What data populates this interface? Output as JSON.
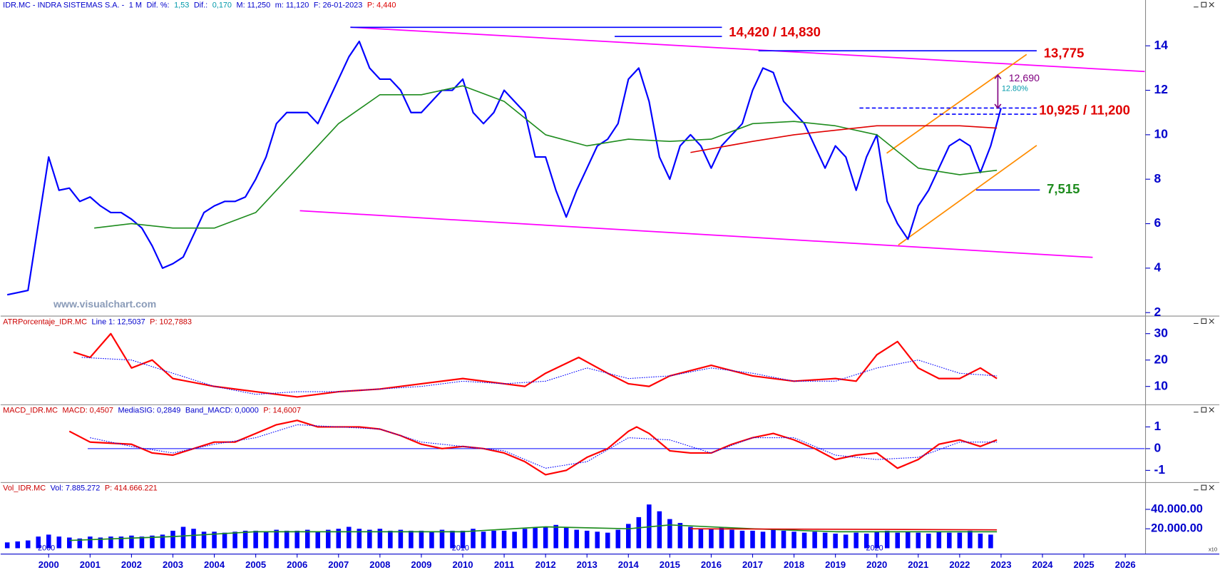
{
  "chart_data": [
    {
      "type": "line",
      "header": [
        {
          "text": "IDR.MC - INDRA SISTEMAS S.A. -",
          "color": "#0000cc"
        },
        {
          "text": "1 M",
          "color": "#0000cc"
        },
        {
          "text": "Dif. %:",
          "color": "#0000cc"
        },
        {
          "text": "1,53",
          "color": "#0099aa"
        },
        {
          "text": "Dif.:",
          "color": "#0000cc"
        },
        {
          "text": "0,170",
          "color": "#0099aa"
        },
        {
          "text": "M: 11,250",
          "color": "#0000cc"
        },
        {
          "text": "m: 11,120",
          "color": "#0000cc"
        },
        {
          "text": "F: 26-01-2023",
          "color": "#0000cc"
        },
        {
          "text": "P: 4,440",
          "color": "#dd0000"
        }
      ],
      "watermark": "www.visualchart.com",
      "xlim": [
        1998.84,
        2026.47
      ],
      "ylim": [
        1.86,
        16.06
      ],
      "yticks": [
        2,
        4,
        6,
        8,
        10,
        12,
        14
      ],
      "series": [
        {
          "color": "#0000ff",
          "width": 2,
          "x": [
            1999,
            1999.25,
            1999.5,
            1999.75,
            2000,
            2000.25,
            2000.5,
            2000.75,
            2001,
            2001.25,
            2001.5,
            2001.75,
            2002,
            2002.25,
            2002.5,
            2002.75,
            2003,
            2003.25,
            2003.5,
            2003.75,
            2004,
            2004.25,
            2004.5,
            2004.75,
            2005,
            2005.25,
            2005.5,
            2005.75,
            2006,
            2006.25,
            2006.5,
            2006.75,
            2007,
            2007.25,
            2007.5,
            2007.75,
            2008,
            2008.25,
            2008.5,
            2008.75,
            2009,
            2009.25,
            2009.5,
            2009.75,
            2010,
            2010.25,
            2010.5,
            2010.75,
            2011,
            2011.25,
            2011.5,
            2011.75,
            2012,
            2012.25,
            2012.5,
            2012.75,
            2013,
            2013.25,
            2013.5,
            2013.75,
            2014,
            2014.25,
            2014.5,
            2014.75,
            2015,
            2015.25,
            2015.5,
            2015.75,
            2016,
            2016.25,
            2016.5,
            2016.75,
            2017,
            2017.25,
            2017.5,
            2017.75,
            2018,
            2018.25,
            2018.5,
            2018.75,
            2019,
            2019.25,
            2019.5,
            2019.75,
            2020,
            2020.25,
            2020.5,
            2020.75,
            2021,
            2021.25,
            2021.5,
            2021.75,
            2022,
            2022.25,
            2022.5,
            2022.75,
            2023
          ],
          "values": [
            2.8,
            2.9,
            3.0,
            6.0,
            9.0,
            7.5,
            7.6,
            7.0,
            7.2,
            6.8,
            6.5,
            6.5,
            6.2,
            5.8,
            5.0,
            4.0,
            4.2,
            4.5,
            5.5,
            6.5,
            6.8,
            7.0,
            7.0,
            7.2,
            8.0,
            9.0,
            10.5,
            11.0,
            11.0,
            11.0,
            10.5,
            11.5,
            12.5,
            13.5,
            14.2,
            13.0,
            12.5,
            12.5,
            12.0,
            11.0,
            11.0,
            11.5,
            12.0,
            12.0,
            12.5,
            11.0,
            10.5,
            11.0,
            12.0,
            11.5,
            11.0,
            9.0,
            9.0,
            7.5,
            6.3,
            7.5,
            8.5,
            9.5,
            9.8,
            10.5,
            12.5,
            13.0,
            11.5,
            9.0,
            8.0,
            9.5,
            10.0,
            9.5,
            8.5,
            9.5,
            10.0,
            10.5,
            12.0,
            13.0,
            12.8,
            11.5,
            11.0,
            10.5,
            9.5,
            8.5,
            9.5,
            9.0,
            7.5,
            9.0,
            10.0,
            7.0,
            6.0,
            5.3,
            6.8,
            7.5,
            8.5,
            9.5,
            9.8,
            9.5,
            8.3,
            9.5,
            11.2
          ]
        },
        {
          "color": "#1e8c1e",
          "width": 1.5,
          "x": [
            2001.1,
            2002,
            2003,
            2004,
            2005,
            2006,
            2007,
            2008,
            2009,
            2010,
            2011,
            2012,
            2013,
            2014,
            2015,
            2016,
            2017,
            2018,
            2019,
            2020,
            2021,
            2022,
            2022.9
          ],
          "values": [
            5.8,
            6.0,
            5.8,
            5.8,
            6.5,
            8.5,
            10.5,
            11.8,
            11.8,
            12.2,
            11.5,
            10.0,
            9.5,
            9.8,
            9.7,
            9.8,
            10.5,
            10.6,
            10.4,
            10.0,
            8.5,
            8.2,
            8.4
          ]
        },
        {
          "color": "#e00000",
          "width": 1.5,
          "x": [
            2015.5,
            2017,
            2018,
            2019,
            2020,
            2021,
            2022,
            2022.9
          ],
          "values": [
            9.2,
            9.7,
            10.0,
            10.2,
            10.4,
            10.4,
            10.4,
            10.3
          ]
        }
      ],
      "annotations": [
        {
          "text": "14,420 / 14,830",
          "values": [
            14.42,
            14.83
          ],
          "color": "#e00000"
        },
        {
          "text": "13,775",
          "values": [
            13.775
          ],
          "color": "#e00000"
        },
        {
          "text": "10,925 / 11,200",
          "values": [
            10.925,
            11.2
          ],
          "color": "#e00000"
        },
        {
          "text": "7,515",
          "values": [
            7.515
          ],
          "color": "#1e8c1e"
        },
        {
          "text": "12,690",
          "subtext": "12.80%",
          "values": [
            12.69
          ],
          "color": "#800080"
        }
      ]
    },
    {
      "type": "line",
      "header": [
        {
          "text": "ATRPorcentaje_IDR.MC",
          "color": "#cc0000"
        },
        {
          "text": "Line 1: 12,5037",
          "color": "#0000cc"
        },
        {
          "text": "P: 102,7883",
          "color": "#cc0000"
        }
      ],
      "xlim": [
        1998.84,
        2026.47
      ],
      "ylim": [
        3.5,
        36.5
      ],
      "yticks": [
        10,
        20,
        30
      ],
      "series": [
        {
          "color": "#ff0000",
          "width": 2,
          "x": [
            2000.6,
            2001,
            2001.5,
            2002,
            2002.5,
            2003,
            2004,
            2005,
            2006,
            2007,
            2008,
            2009,
            2010,
            2011,
            2011.5,
            2012,
            2012.8,
            2013.5,
            2014,
            2014.5,
            2015,
            2016,
            2017,
            2018,
            2019,
            2019.5,
            2020,
            2020.5,
            2021,
            2021.5,
            2022,
            2022.5,
            2022.9
          ],
          "values": [
            23,
            21,
            30,
            17,
            20,
            13,
            10,
            8,
            6,
            8,
            9,
            11,
            13,
            11,
            10,
            15,
            21,
            15,
            11,
            10,
            14,
            18,
            14,
            12,
            13,
            12,
            22,
            27,
            17,
            13,
            13,
            17,
            13
          ]
        },
        {
          "color": "#0000ff",
          "width": 1,
          "dotted": true,
          "x": [
            2000.8,
            2002,
            2003,
            2004,
            2005,
            2006,
            2007,
            2008,
            2009,
            2010,
            2011,
            2012,
            2013,
            2014,
            2015,
            2016,
            2017,
            2018,
            2019,
            2020,
            2021,
            2022,
            2022.9
          ],
          "values": [
            21,
            20,
            15,
            10,
            7,
            8,
            8,
            9,
            10,
            12,
            11,
            12,
            17,
            13,
            14,
            17,
            15,
            12,
            12,
            17,
            20,
            15,
            14
          ]
        }
      ]
    },
    {
      "type": "line",
      "header": [
        {
          "text": "MACD_IDR.MC",
          "color": "#cc0000"
        },
        {
          "text": "MACD: 0,4507",
          "color": "#cc0000"
        },
        {
          "text": "MediaSIG: 0,2849",
          "color": "#0000cc"
        },
        {
          "text": "Band_MACD: 0,0000",
          "color": "#0000cc"
        },
        {
          "text": "P: 14,6007",
          "color": "#cc0000"
        }
      ],
      "xlim": [
        1998.84,
        2026.47
      ],
      "ylim": [
        -1.54,
        2
      ],
      "yticks": [
        -1,
        0,
        1
      ],
      "band": 0,
      "series": [
        {
          "color": "#ff0000",
          "width": 2,
          "x": [
            2000.5,
            2001,
            2002,
            2002.5,
            2003,
            2003.5,
            2004,
            2004.5,
            2005,
            2005.5,
            2006,
            2006.5,
            2007,
            2007.5,
            2008,
            2008.5,
            2009,
            2009.5,
            2010,
            2010.5,
            2011,
            2011.5,
            2012,
            2012.5,
            2013,
            2013.5,
            2014,
            2014.2,
            2014.5,
            2015,
            2015.5,
            2016,
            2016.5,
            2017,
            2017.5,
            2018,
            2018.5,
            2019,
            2019.5,
            2020,
            2020.5,
            2021,
            2021.5,
            2022,
            2022.5,
            2022.9
          ],
          "values": [
            0.8,
            0.3,
            0.2,
            -0.2,
            -0.3,
            0,
            0.3,
            0.3,
            0.7,
            1.1,
            1.3,
            1.0,
            1.0,
            1.0,
            0.9,
            0.6,
            0.2,
            0,
            0.1,
            0,
            -0.2,
            -0.6,
            -1.2,
            -1.0,
            -0.4,
            0,
            0.8,
            1.0,
            0.7,
            -0.1,
            -0.2,
            -0.2,
            0.2,
            0.5,
            0.7,
            0.4,
            0,
            -0.5,
            -0.3,
            -0.2,
            -0.9,
            -0.5,
            0.2,
            0.4,
            0.1,
            0.4
          ]
        },
        {
          "color": "#0000ff",
          "width": 1,
          "dotted": true,
          "x": [
            2001,
            2002,
            2003,
            2004,
            2005,
            2006,
            2007,
            2008,
            2009,
            2010,
            2011,
            2012,
            2013,
            2014,
            2015,
            2016,
            2017,
            2018,
            2019,
            2020,
            2021,
            2022,
            2022.9
          ],
          "values": [
            0.5,
            0.1,
            -0.2,
            0.2,
            0.5,
            1.1,
            1.0,
            0.9,
            0.3,
            0.1,
            -0.1,
            -0.9,
            -0.6,
            0.5,
            0.4,
            -0.2,
            0.5,
            0.5,
            -0.3,
            -0.5,
            -0.4,
            0.3,
            0.3
          ]
        }
      ]
    },
    {
      "type": "bar",
      "header": [
        {
          "text": "Vol_IDR.MC",
          "color": "#cc0000"
        },
        {
          "text": "Vol: 7.885.272",
          "color": "#0000cc"
        },
        {
          "text": "P: 414.666.221",
          "color": "#cc0000"
        }
      ],
      "xlim": [
        1998.84,
        2026.47
      ],
      "ylim": [
        -5600,
        67200
      ],
      "yticks": [
        {
          "value": 20000,
          "label": "20.000.00"
        },
        {
          "value": 40000,
          "label": "40.000.00"
        }
      ],
      "scale_note": "x10",
      "xticks": [
        2000,
        2001,
        2002,
        2003,
        2004,
        2005,
        2006,
        2007,
        2008,
        2009,
        2010,
        2011,
        2012,
        2013,
        2014,
        2015,
        2016,
        2017,
        2018,
        2019,
        2020,
        2021,
        2022,
        2023,
        2024,
        2025,
        2026
      ],
      "decade_marks": [
        2000,
        2010,
        2020
      ],
      "bars": {
        "color": "#0000ff",
        "x": [
          1999,
          1999.25,
          1999.5,
          1999.75,
          2000,
          2000.25,
          2000.5,
          2000.75,
          2001,
          2001.25,
          2001.5,
          2001.75,
          2002,
          2002.25,
          2002.5,
          2002.75,
          2003,
          2003.25,
          2003.5,
          2003.75,
          2004,
          2004.25,
          2004.5,
          2004.75,
          2005,
          2005.25,
          2005.5,
          2005.75,
          2006,
          2006.25,
          2006.5,
          2006.75,
          2007,
          2007.25,
          2007.5,
          2007.75,
          2008,
          2008.25,
          2008.5,
          2008.75,
          2009,
          2009.25,
          2009.5,
          2009.75,
          2010,
          2010.25,
          2010.5,
          2010.75,
          2011,
          2011.25,
          2011.5,
          2011.75,
          2012,
          2012.25,
          2012.5,
          2012.75,
          2013,
          2013.25,
          2013.5,
          2013.75,
          2014,
          2014.25,
          2014.5,
          2014.75,
          2015,
          2015.25,
          2015.5,
          2015.75,
          2016,
          2016.25,
          2016.5,
          2016.75,
          2017,
          2017.25,
          2017.5,
          2017.75,
          2018,
          2018.25,
          2018.5,
          2018.75,
          2019,
          2019.25,
          2019.5,
          2019.75,
          2020,
          2020.25,
          2020.5,
          2020.75,
          2021,
          2021.25,
          2021.5,
          2021.75,
          2022,
          2022.25,
          2022.5,
          2022.75
        ],
        "values": [
          6000,
          7000,
          8000,
          12000,
          14000,
          12000,
          11000,
          10000,
          12000,
          11000,
          12000,
          12000,
          13000,
          12000,
          13000,
          14000,
          18000,
          22000,
          20000,
          17000,
          17000,
          16000,
          17000,
          18000,
          18000,
          17000,
          19000,
          18000,
          18000,
          19000,
          17000,
          19000,
          20000,
          22000,
          20000,
          19000,
          20000,
          18000,
          19000,
          18000,
          18000,
          17000,
          19000,
          18000,
          18000,
          20000,
          17000,
          18000,
          18000,
          17000,
          20000,
          21000,
          22000,
          24000,
          22000,
          19000,
          18000,
          17000,
          16000,
          19000,
          25000,
          32000,
          45000,
          38000,
          30000,
          26000,
          22000,
          20000,
          20000,
          22000,
          19000,
          18000,
          18000,
          17000,
          19000,
          18000,
          17000,
          16000,
          17000,
          16000,
          15000,
          14000,
          16000,
          15000,
          17000,
          18000,
          16000,
          17000,
          16000,
          15000,
          17000,
          16000,
          16000,
          18000,
          15000,
          14000
        ]
      },
      "series": [
        {
          "color": "#1e8c1e",
          "width": 1.5,
          "x": [
            2000.5,
            2003,
            2005,
            2010,
            2012,
            2014,
            2015,
            2017,
            2019,
            2022.9
          ],
          "values": [
            8000,
            12000,
            17000,
            17000,
            22000,
            20000,
            24000,
            20000,
            17000,
            17000
          ]
        },
        {
          "color": "#e00000",
          "width": 1.5,
          "x": [
            2015.5,
            2022.9
          ],
          "values": [
            20000,
            19000
          ]
        }
      ]
    }
  ]
}
